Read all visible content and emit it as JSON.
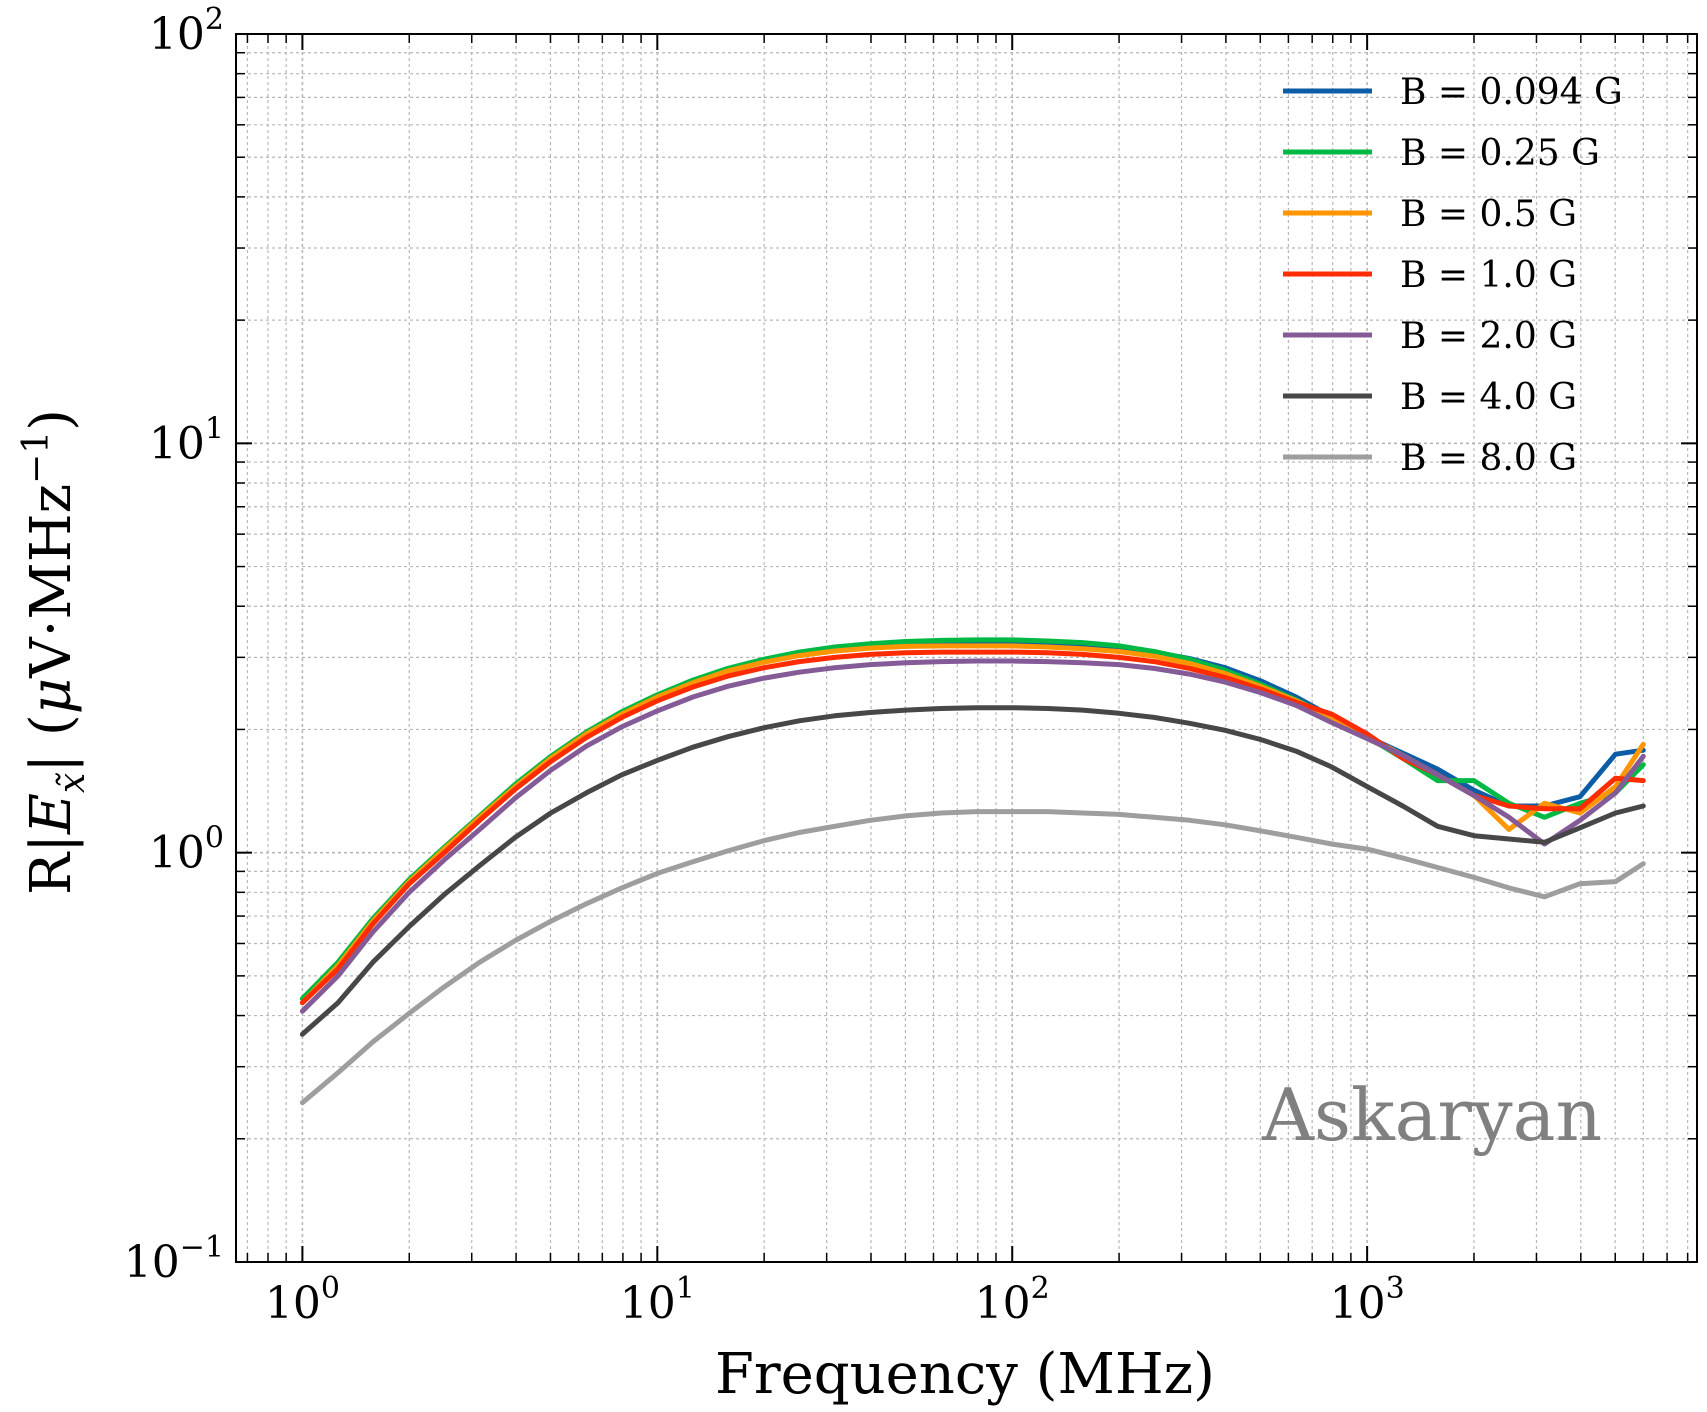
{
  "chart_data": {
    "type": "line",
    "title": "",
    "xlabel": "Frequency (MHz)",
    "ylabel_parts": {
      "prefix": "R|",
      "symbol": "E",
      "subscript": "x̃",
      "suffix": "| (",
      "mu": "μ",
      "unit": "V·MHz",
      "exponent": "−1",
      "close": ")"
    },
    "x_scale": "log",
    "y_scale": "log",
    "xlim": [
      0.65,
      8500
    ],
    "ylim": [
      0.1,
      100
    ],
    "x_ticks": [
      {
        "base": "10",
        "exp": "0",
        "value": 1
      },
      {
        "base": "10",
        "exp": "1",
        "value": 10
      },
      {
        "base": "10",
        "exp": "2",
        "value": 100
      },
      {
        "base": "10",
        "exp": "3",
        "value": 1000
      }
    ],
    "y_ticks": [
      {
        "base": "10",
        "exp": "−1",
        "value": 0.1
      },
      {
        "base": "10",
        "exp": "0",
        "value": 1
      },
      {
        "base": "10",
        "exp": "1",
        "value": 10
      },
      {
        "base": "10",
        "exp": "2",
        "value": 100
      }
    ],
    "grid": true,
    "legend_position": "top-right",
    "annotation": {
      "text": "Askaryan",
      "color": "#808080"
    },
    "x": [
      1.0,
      1.26,
      1.58,
      2.0,
      2.51,
      3.16,
      3.98,
      5.01,
      6.31,
      7.94,
      10.0,
      12.6,
      15.8,
      20.0,
      25.1,
      31.6,
      39.8,
      50.1,
      63.1,
      79.4,
      100,
      126,
      158,
      200,
      251,
      316,
      398,
      501,
      631,
      794,
      1000,
      1260,
      1580,
      2000,
      2510,
      3160,
      3980,
      5010,
      6000
    ],
    "series": [
      {
        "name": "B = 0.094 G",
        "color": "#0c5da5",
        "values": [
          0.43,
          0.53,
          0.68,
          0.85,
          1.02,
          1.22,
          1.45,
          1.7,
          1.95,
          2.18,
          2.4,
          2.6,
          2.78,
          2.93,
          3.05,
          3.14,
          3.2,
          3.24,
          3.26,
          3.27,
          3.27,
          3.25,
          3.22,
          3.17,
          3.09,
          2.98,
          2.83,
          2.63,
          2.4,
          2.15,
          1.92,
          1.75,
          1.6,
          1.42,
          1.3,
          1.3,
          1.37,
          1.74,
          1.78
        ]
      },
      {
        "name": "B = 0.25 G",
        "color": "#00b945",
        "values": [
          0.44,
          0.54,
          0.69,
          0.86,
          1.03,
          1.23,
          1.47,
          1.72,
          1.97,
          2.21,
          2.43,
          2.64,
          2.82,
          2.97,
          3.09,
          3.18,
          3.24,
          3.28,
          3.3,
          3.31,
          3.31,
          3.29,
          3.26,
          3.2,
          3.1,
          2.97,
          2.79,
          2.58,
          2.36,
          2.14,
          1.92,
          1.7,
          1.5,
          1.5,
          1.32,
          1.22,
          1.32,
          1.4,
          1.64
        ]
      },
      {
        "name": "B = 0.5 G",
        "color": "#ff9500",
        "values": [
          0.43,
          0.53,
          0.68,
          0.85,
          1.02,
          1.22,
          1.45,
          1.7,
          1.95,
          2.18,
          2.4,
          2.6,
          2.78,
          2.92,
          3.03,
          3.11,
          3.16,
          3.19,
          3.2,
          3.2,
          3.2,
          3.18,
          3.15,
          3.1,
          3.02,
          2.9,
          2.74,
          2.55,
          2.35,
          2.13,
          1.92,
          1.73,
          1.55,
          1.38,
          1.14,
          1.32,
          1.25,
          1.45,
          1.84
        ]
      },
      {
        "name": "B = 1.0 G",
        "color": "#ff2c00",
        "values": [
          0.43,
          0.52,
          0.67,
          0.84,
          1.0,
          1.2,
          1.43,
          1.67,
          1.91,
          2.14,
          2.35,
          2.54,
          2.7,
          2.83,
          2.93,
          3.0,
          3.05,
          3.08,
          3.09,
          3.09,
          3.09,
          3.08,
          3.05,
          3.0,
          2.93,
          2.82,
          2.68,
          2.51,
          2.33,
          2.18,
          1.95,
          1.7,
          1.55,
          1.38,
          1.3,
          1.28,
          1.28,
          1.52,
          1.5
        ]
      },
      {
        "name": "B = 2.0 G",
        "color": "#845b97",
        "values": [
          0.41,
          0.5,
          0.64,
          0.8,
          0.96,
          1.14,
          1.36,
          1.59,
          1.82,
          2.03,
          2.22,
          2.4,
          2.55,
          2.67,
          2.76,
          2.83,
          2.88,
          2.91,
          2.93,
          2.94,
          2.94,
          2.93,
          2.91,
          2.88,
          2.82,
          2.73,
          2.61,
          2.46,
          2.29,
          2.08,
          1.9,
          1.73,
          1.55,
          1.38,
          1.22,
          1.05,
          1.2,
          1.4,
          1.72
        ]
      },
      {
        "name": "B = 4.0 G",
        "color": "#474747",
        "values": [
          0.36,
          0.43,
          0.54,
          0.66,
          0.79,
          0.93,
          1.09,
          1.25,
          1.4,
          1.55,
          1.68,
          1.81,
          1.92,
          2.02,
          2.1,
          2.16,
          2.2,
          2.23,
          2.25,
          2.26,
          2.26,
          2.25,
          2.23,
          2.19,
          2.14,
          2.07,
          1.99,
          1.89,
          1.77,
          1.62,
          1.45,
          1.3,
          1.16,
          1.1,
          1.08,
          1.06,
          1.15,
          1.25,
          1.3
        ]
      },
      {
        "name": "B = 8.0 G",
        "color": "#9e9e9e",
        "values": [
          0.245,
          0.29,
          0.345,
          0.405,
          0.47,
          0.54,
          0.61,
          0.68,
          0.75,
          0.82,
          0.89,
          0.95,
          1.01,
          1.07,
          1.12,
          1.16,
          1.2,
          1.23,
          1.25,
          1.26,
          1.26,
          1.26,
          1.25,
          1.24,
          1.22,
          1.2,
          1.17,
          1.13,
          1.09,
          1.05,
          1.02,
          0.97,
          0.92,
          0.87,
          0.82,
          0.78,
          0.84,
          0.85,
          0.94
        ]
      }
    ]
  }
}
